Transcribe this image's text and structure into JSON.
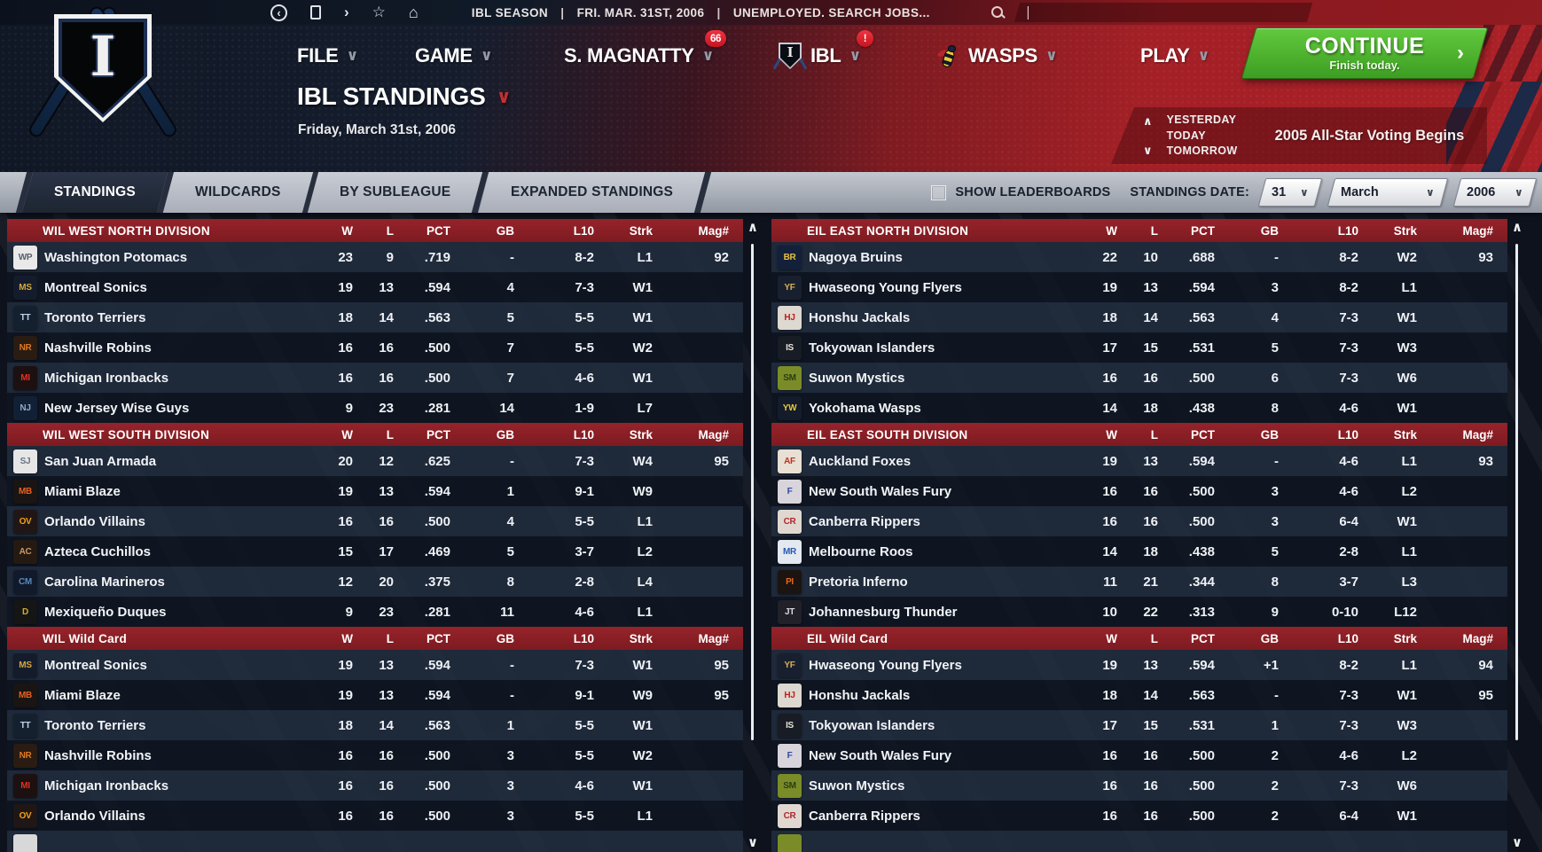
{
  "topbar": {
    "crumb_season": "IBL SEASON",
    "crumb_date": "FRI. MAR. 31ST, 2006",
    "crumb_status": "UNEMPLOYED. SEARCH JOBS...",
    "separator": "|"
  },
  "menubar": {
    "file": "FILE",
    "game": "GAME",
    "manager": "S. MAGNATTY",
    "manager_badge": "66",
    "league": "IBL",
    "league_badge": "!",
    "team": "WASPS",
    "play": "PLAY",
    "chevron": "∨",
    "continue_label": "CONTINUE",
    "continue_sub": "Finish today.",
    "continue_arrow": "›"
  },
  "header": {
    "title": "IBL STANDINGS",
    "title_chevron": "∨",
    "date": "Friday, March 31st, 2006",
    "nav_up": "∧",
    "nav_down": "∨",
    "day_nav": [
      "YESTERDAY",
      "TODAY",
      "TOMORROW"
    ],
    "news": "2005 All-Star Voting Begins"
  },
  "tabs": [
    {
      "label": "STANDINGS",
      "active": true
    },
    {
      "label": "WILDCARDS",
      "active": false
    },
    {
      "label": "BY SUBLEAGUE",
      "active": false
    },
    {
      "label": "EXPANDED STANDINGS",
      "active": false
    }
  ],
  "controls": {
    "show_leaderboards": "SHOW LEADERBOARDS",
    "standings_date_label": "STANDINGS DATE:",
    "day": "31",
    "month": "March",
    "year": "2006",
    "dropdown_chevron": "∨"
  },
  "columns": [
    "W",
    "L",
    "PCT",
    "GB",
    "L10",
    "Strk",
    "Mag#"
  ],
  "colors": {
    "accent_red": "#a32026",
    "section_header_red": "#8e2127",
    "tab_active_navy": "#222b3a",
    "continue_green": "#47b52e",
    "badge_red": "#e02530"
  },
  "standings": {
    "left": {
      "sections": [
        {
          "title": "WIL WEST NORTH DIVISION",
          "rows": [
            {
              "team": "Washington Potomacs",
              "icon": {
                "bg": "#e9e9e9",
                "fg": "#55606e",
                "label": "WP"
              },
              "w": "23",
              "l": "9",
              "pct": ".719",
              "gb": "-",
              "l10": "8-2",
              "strk": "L1",
              "mag": "92"
            },
            {
              "team": "Montreal Sonics",
              "icon": {
                "bg": "#141c2c",
                "fg": "#d4a83c",
                "label": "MS"
              },
              "w": "19",
              "l": "13",
              "pct": ".594",
              "gb": "4",
              "l10": "7-3",
              "strk": "W1",
              "mag": ""
            },
            {
              "team": "Toronto Terriers",
              "icon": {
                "bg": "#15202e",
                "fg": "#bcd4ea",
                "label": "TT"
              },
              "w": "18",
              "l": "14",
              "pct": ".563",
              "gb": "5",
              "l10": "5-5",
              "strk": "W1",
              "mag": ""
            },
            {
              "team": "Nashville Robins",
              "icon": {
                "bg": "#2a1c12",
                "fg": "#e07820",
                "label": "NR"
              },
              "w": "16",
              "l": "16",
              "pct": ".500",
              "gb": "7",
              "l10": "5-5",
              "strk": "W2",
              "mag": ""
            },
            {
              "team": "Michigan Ironbacks",
              "icon": {
                "bg": "#1c1010",
                "fg": "#e03020",
                "label": "MI"
              },
              "w": "16",
              "l": "16",
              "pct": ".500",
              "gb": "7",
              "l10": "4-6",
              "strk": "W1",
              "mag": ""
            },
            {
              "team": "New Jersey Wise Guys",
              "icon": {
                "bg": "#122036",
                "fg": "#8fa8c8",
                "label": "NJ"
              },
              "w": "9",
              "l": "23",
              "pct": ".281",
              "gb": "14",
              "l10": "1-9",
              "strk": "L7",
              "mag": ""
            }
          ]
        },
        {
          "title": "WIL WEST SOUTH DIVISION",
          "rows": [
            {
              "team": "San Juan Armada",
              "icon": {
                "bg": "#e6e6e6",
                "fg": "#6a7482",
                "label": "SJ"
              },
              "w": "20",
              "l": "12",
              "pct": ".625",
              "gb": "-",
              "l10": "7-3",
              "strk": "W4",
              "mag": "95"
            },
            {
              "team": "Miami Blaze",
              "icon": {
                "bg": "#1a1512",
                "fg": "#e8601c",
                "label": "MB"
              },
              "w": "19",
              "l": "13",
              "pct": ".594",
              "gb": "1",
              "l10": "9-1",
              "strk": "W9",
              "mag": ""
            },
            {
              "team": "Orlando Villains",
              "icon": {
                "bg": "#201616",
                "fg": "#f0a01c",
                "label": "OV"
              },
              "w": "16",
              "l": "16",
              "pct": ".500",
              "gb": "4",
              "l10": "5-5",
              "strk": "L1",
              "mag": ""
            },
            {
              "team": "Azteca Cuchillos",
              "icon": {
                "bg": "#241a12",
                "fg": "#c89868",
                "label": "AC"
              },
              "w": "15",
              "l": "17",
              "pct": ".469",
              "gb": "5",
              "l10": "3-7",
              "strk": "L2",
              "mag": ""
            },
            {
              "team": "Carolina Marineros",
              "icon": {
                "bg": "#101a2a",
                "fg": "#5888c0",
                "label": "CM"
              },
              "w": "12",
              "l": "20",
              "pct": ".375",
              "gb": "8",
              "l10": "2-8",
              "strk": "L4",
              "mag": ""
            },
            {
              "team": "Mexiqueño Duques",
              "icon": {
                "bg": "#151515",
                "fg": "#d4aa30",
                "label": "D"
              },
              "w": "9",
              "l": "23",
              "pct": ".281",
              "gb": "11",
              "l10": "4-6",
              "strk": "L1",
              "mag": ""
            }
          ]
        },
        {
          "title": "WIL  Wild Card",
          "rows": [
            {
              "team": "Montreal Sonics",
              "icon": {
                "bg": "#141c2c",
                "fg": "#d4a83c",
                "label": "MS"
              },
              "w": "19",
              "l": "13",
              "pct": ".594",
              "gb": "-",
              "l10": "7-3",
              "strk": "W1",
              "mag": "95"
            },
            {
              "team": "Miami Blaze",
              "icon": {
                "bg": "#1a1512",
                "fg": "#e8601c",
                "label": "MB"
              },
              "w": "19",
              "l": "13",
              "pct": ".594",
              "gb": "-",
              "l10": "9-1",
              "strk": "W9",
              "mag": "95"
            },
            {
              "team": "Toronto Terriers",
              "icon": {
                "bg": "#15202e",
                "fg": "#bcd4ea",
                "label": "TT"
              },
              "w": "18",
              "l": "14",
              "pct": ".563",
              "gb": "1",
              "l10": "5-5",
              "strk": "W1",
              "mag": ""
            },
            {
              "team": "Nashville Robins",
              "icon": {
                "bg": "#2a1c12",
                "fg": "#e07820",
                "label": "NR"
              },
              "w": "16",
              "l": "16",
              "pct": ".500",
              "gb": "3",
              "l10": "5-5",
              "strk": "W2",
              "mag": ""
            },
            {
              "team": "Michigan Ironbacks",
              "icon": {
                "bg": "#1c1010",
                "fg": "#e03020",
                "label": "MI"
              },
              "w": "16",
              "l": "16",
              "pct": ".500",
              "gb": "3",
              "l10": "4-6",
              "strk": "W1",
              "mag": ""
            },
            {
              "team": "Orlando Villains",
              "icon": {
                "bg": "#201616",
                "fg": "#f0a01c",
                "label": "OV"
              },
              "w": "16",
              "l": "16",
              "pct": ".500",
              "gb": "3",
              "l10": "5-5",
              "strk": "L1",
              "mag": ""
            }
          ]
        }
      ],
      "partial_icon": {
        "bg": "#d8d8d8",
        "fg": "#666",
        "label": ""
      }
    },
    "right": {
      "sections": [
        {
          "title": "EIL EAST NORTH DIVISION",
          "rows": [
            {
              "team": "Nagoya  Bruins",
              "icon": {
                "bg": "#13203a",
                "fg": "#e8c040",
                "label": "BR"
              },
              "w": "22",
              "l": "10",
              "pct": ".688",
              "gb": "-",
              "l10": "8-2",
              "strk": "W2",
              "mag": "93"
            },
            {
              "team": "Hwaseong Young Flyers",
              "icon": {
                "bg": "#182030",
                "fg": "#d8b050",
                "label": "YF"
              },
              "w": "19",
              "l": "13",
              "pct": ".594",
              "gb": "3",
              "l10": "8-2",
              "strk": "L1",
              "mag": ""
            },
            {
              "team": "Honshu Jackals",
              "icon": {
                "bg": "#ddd8d0",
                "fg": "#c02018",
                "label": "HJ"
              },
              "w": "18",
              "l": "14",
              "pct": ".563",
              "gb": "4",
              "l10": "7-3",
              "strk": "W1",
              "mag": ""
            },
            {
              "team": "Tokyowan Islanders",
              "icon": {
                "bg": "#181c24",
                "fg": "#e8e4da",
                "label": "IS"
              },
              "w": "17",
              "l": "15",
              "pct": ".531",
              "gb": "5",
              "l10": "7-3",
              "strk": "W3",
              "mag": ""
            },
            {
              "team": "Suwon Mystics",
              "icon": {
                "bg": "#7a8c28",
                "fg": "#2c3c14",
                "label": "SM"
              },
              "w": "16",
              "l": "16",
              "pct": ".500",
              "gb": "6",
              "l10": "7-3",
              "strk": "W6",
              "mag": ""
            },
            {
              "team": "Yokohama Wasps",
              "icon": {
                "bg": "#141c2c",
                "fg": "#e8c838",
                "label": "YW"
              },
              "w": "14",
              "l": "18",
              "pct": ".438",
              "gb": "8",
              "l10": "4-6",
              "strk": "W1",
              "mag": ""
            }
          ]
        },
        {
          "title": "EIL EAST SOUTH DIVISION",
          "rows": [
            {
              "team": "Auckland Foxes",
              "icon": {
                "bg": "#e8e0d4",
                "fg": "#c03028",
                "label": "AF"
              },
              "w": "19",
              "l": "13",
              "pct": ".594",
              "gb": "-",
              "l10": "4-6",
              "strk": "L1",
              "mag": "93"
            },
            {
              "team": "New South Wales Fury",
              "icon": {
                "bg": "#d8d4dc",
                "fg": "#3048a0",
                "label": "F"
              },
              "w": "16",
              "l": "16",
              "pct": ".500",
              "gb": "3",
              "l10": "4-6",
              "strk": "L2",
              "mag": ""
            },
            {
              "team": "Canberra Rippers",
              "icon": {
                "bg": "#e0d8d0",
                "fg": "#b02830",
                "label": "CR"
              },
              "w": "16",
              "l": "16",
              "pct": ".500",
              "gb": "3",
              "l10": "6-4",
              "strk": "W1",
              "mag": ""
            },
            {
              "team": "Melbourne Roos",
              "icon": {
                "bg": "#e4e8f0",
                "fg": "#2858b0",
                "label": "MR"
              },
              "w": "14",
              "l": "18",
              "pct": ".438",
              "gb": "5",
              "l10": "2-8",
              "strk": "L1",
              "mag": ""
            },
            {
              "team": "Pretoria Inferno",
              "icon": {
                "bg": "#1c1410",
                "fg": "#e86820",
                "label": "PI"
              },
              "w": "11",
              "l": "21",
              "pct": ".344",
              "gb": "8",
              "l10": "3-7",
              "strk": "L3",
              "mag": ""
            },
            {
              "team": "Johannesburg Thunder",
              "icon": {
                "bg": "#222028",
                "fg": "#d8d8e0",
                "label": "JT"
              },
              "w": "10",
              "l": "22",
              "pct": ".313",
              "gb": "9",
              "l10": "0-10",
              "strk": "L12",
              "mag": ""
            }
          ]
        },
        {
          "title": "EIL  Wild Card",
          "rows": [
            {
              "team": "Hwaseong Young Flyers",
              "icon": {
                "bg": "#182030",
                "fg": "#d8b050",
                "label": "YF"
              },
              "w": "19",
              "l": "13",
              "pct": ".594",
              "gb": "+1",
              "l10": "8-2",
              "strk": "L1",
              "mag": "94"
            },
            {
              "team": "Honshu Jackals",
              "icon": {
                "bg": "#ddd8d0",
                "fg": "#c02018",
                "label": "HJ"
              },
              "w": "18",
              "l": "14",
              "pct": ".563",
              "gb": "-",
              "l10": "7-3",
              "strk": "W1",
              "mag": "95"
            },
            {
              "team": "Tokyowan Islanders",
              "icon": {
                "bg": "#181c24",
                "fg": "#e8e4da",
                "label": "IS"
              },
              "w": "17",
              "l": "15",
              "pct": ".531",
              "gb": "1",
              "l10": "7-3",
              "strk": "W3",
              "mag": ""
            },
            {
              "team": "New South Wales Fury",
              "icon": {
                "bg": "#d8d4dc",
                "fg": "#3048a0",
                "label": "F"
              },
              "w": "16",
              "l": "16",
              "pct": ".500",
              "gb": "2",
              "l10": "4-6",
              "strk": "L2",
              "mag": ""
            },
            {
              "team": "Suwon Mystics",
              "icon": {
                "bg": "#7a8c28",
                "fg": "#2c3c14",
                "label": "SM"
              },
              "w": "16",
              "l": "16",
              "pct": ".500",
              "gb": "2",
              "l10": "7-3",
              "strk": "W6",
              "mag": ""
            },
            {
              "team": "Canberra Rippers",
              "icon": {
                "bg": "#e0d8d0",
                "fg": "#b02830",
                "label": "CR"
              },
              "w": "16",
              "l": "16",
              "pct": ".500",
              "gb": "2",
              "l10": "6-4",
              "strk": "W1",
              "mag": ""
            }
          ]
        }
      ],
      "partial_icon": {
        "bg": "#7a8c28",
        "fg": "#2c3c14",
        "label": ""
      }
    }
  }
}
